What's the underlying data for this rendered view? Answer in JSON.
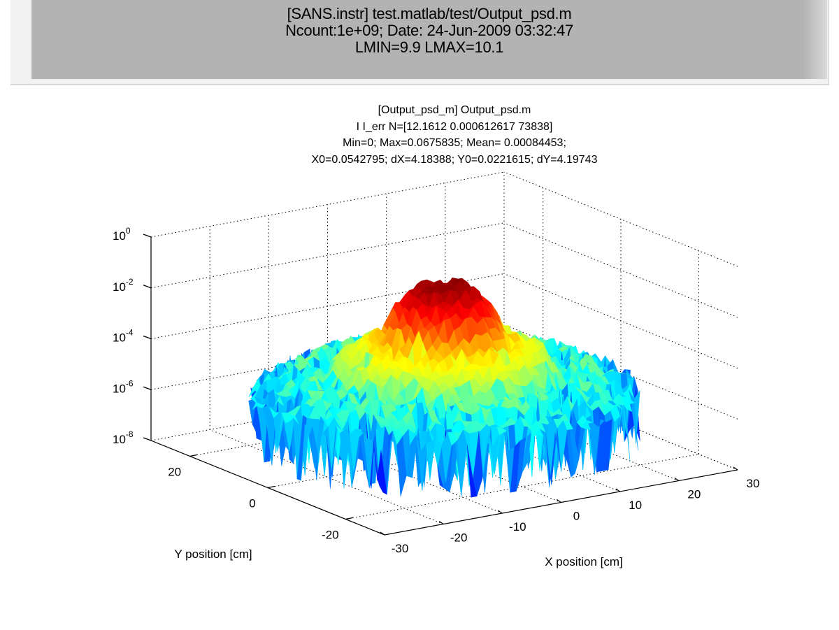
{
  "header": {
    "lines": [
      "[SANS.instr] test.matlab/test/Output_psd.m",
      "Ncount:1e+09; Date: 24-Jun-2009 03:32:47",
      "LMIN=9.9 LMAX=10.1"
    ],
    "background": "#b3b3b3"
  },
  "chart_data": {
    "type": "surface",
    "title": [
      "[Output_psd_m] Output_psd.m",
      "I I_err N=[12.1612 0.000612617 73838]",
      "Min=0; Max=0.0675835; Mean= 0.00084453;",
      "X0=0.0542795; dX=4.18388; Y0=0.0221615; dY=4.19743"
    ],
    "xlabel": "X position [cm]",
    "ylabel": "Y position [cm]",
    "xlim": [
      -30,
      30
    ],
    "ylim": [
      -30,
      30
    ],
    "zlim": [
      1e-08,
      1
    ],
    "zscale": "log",
    "x_ticks": [
      "-30",
      "-20",
      "-10",
      "0",
      "10",
      "20",
      "30"
    ],
    "x_tick_values": [
      -30,
      -20,
      -10,
      0,
      10,
      20,
      30
    ],
    "y_ticks": [
      "-20",
      "0",
      "20"
    ],
    "y_tick_values": [
      -20,
      0,
      20
    ],
    "z_tick_exponents": [
      "0",
      "-2",
      "-4",
      "-6",
      "-8"
    ],
    "z_tick_base": "10",
    "grid": true,
    "colormap": "jet",
    "radial_profile": {
      "r_cm": [
        0,
        4,
        7,
        9,
        12,
        15,
        17,
        20,
        23,
        26,
        28
      ],
      "log10_intensity": [
        -1.2,
        -1.5,
        -2.3,
        -3.3,
        -3.8,
        -4.2,
        -5.0,
        -4.6,
        -5.0,
        -5.3,
        -5.6
      ]
    },
    "extent_radius_cm": 28
  }
}
